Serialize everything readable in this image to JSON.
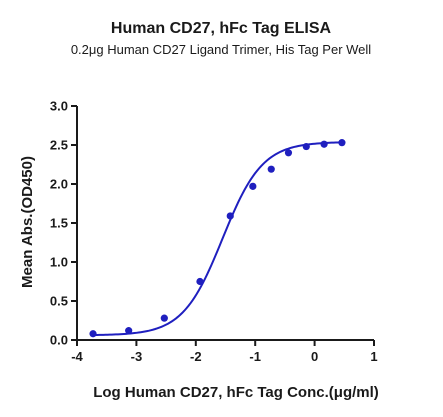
{
  "chart_data": {
    "type": "scatter",
    "title": "Human CD27, hFc Tag ELISA",
    "subtitle": "0.2μg Human CD27 Ligand Trimer, His Tag Per Well",
    "xlabel": "Log Human CD27, hFc Tag Conc.(μg/ml)",
    "ylabel": "Mean Abs.(OD450)",
    "xlim": [
      -4,
      1
    ],
    "ylim": [
      0,
      3
    ],
    "xticks": [
      "-4",
      "-3",
      "-2",
      "-1",
      "0",
      "1"
    ],
    "yticks": [
      "0.0",
      "0.5",
      "1.0",
      "1.5",
      "2.0",
      "2.5",
      "3.0"
    ],
    "grid": false,
    "series": [
      {
        "points": [
          {
            "x": -3.73,
            "y": 0.08
          },
          {
            "x": -3.13,
            "y": 0.12
          },
          {
            "x": -2.53,
            "y": 0.28
          },
          {
            "x": -1.93,
            "y": 0.75
          },
          {
            "x": -1.42,
            "y": 1.59
          },
          {
            "x": -1.04,
            "y": 1.97
          },
          {
            "x": -0.73,
            "y": 2.19
          },
          {
            "x": -0.44,
            "y": 2.4
          },
          {
            "x": -0.14,
            "y": 2.48
          },
          {
            "x": 0.16,
            "y": 2.51
          },
          {
            "x": 0.46,
            "y": 2.53
          }
        ]
      }
    ],
    "fit_curve": {
      "bottom": 0.06,
      "top": 2.54,
      "log_ec50": -1.55,
      "hill_slope": 1.3
    },
    "color": "#1f1fbf"
  }
}
